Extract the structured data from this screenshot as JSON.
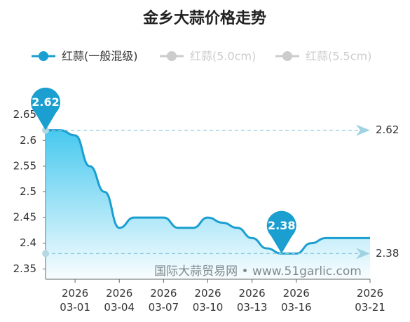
{
  "chart_data": {
    "type": "line",
    "title": "金乡大蒜价格走势",
    "categories": [
      null,
      null,
      "2026\n03-01",
      null,
      null,
      "2026\n03-04",
      null,
      null,
      "2026\n03-07",
      null,
      null,
      "2026\n03-10",
      null,
      null,
      "2026\n03-13",
      null,
      null,
      "2026\n03-16",
      null,
      null,
      null,
      null,
      "2026\n03-21"
    ],
    "series": [
      {
        "name": "红蒜(一般混级)",
        "color": "#1a9fd0",
        "visible": true,
        "values": [
          2.62,
          2.62,
          2.61,
          2.55,
          2.5,
          2.43,
          2.45,
          2.45,
          2.45,
          2.43,
          2.43,
          2.45,
          2.44,
          2.43,
          2.41,
          2.39,
          2.38,
          2.38,
          2.4,
          2.41,
          2.41,
          2.41,
          2.41
        ]
      },
      {
        "name": "红蒜(5.0cm)",
        "color": "#cccccc",
        "visible": false
      },
      {
        "name": "红蒜(5.5cm)",
        "color": "#cccccc",
        "visible": false
      }
    ],
    "ylim": [
      2.33,
      2.67
    ],
    "yticks": [
      2.35,
      2.4,
      2.45,
      2.5,
      2.55,
      2.6,
      2.65
    ],
    "mark_points": [
      {
        "index": 0,
        "value": 2.62
      },
      {
        "index": 16,
        "value": 2.38
      }
    ],
    "mark_lines": [
      2.62,
      2.38
    ],
    "watermark": "国际大蒜贸易网 • www.51garlic.com"
  }
}
